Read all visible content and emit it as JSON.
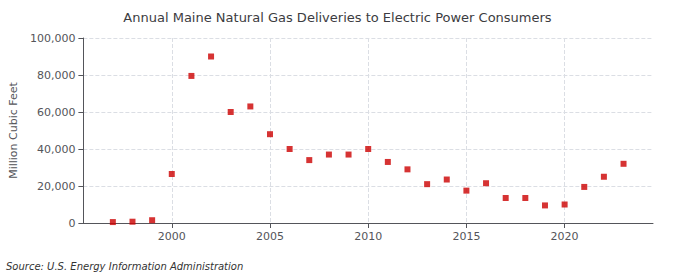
{
  "chart_data": {
    "type": "scatter",
    "title": "Annual Maine Natural Gas Deliveries to Electric Power Consumers",
    "ylabel": "Million Cubic Feet",
    "annotation": "Source: U.S. Energy Information Administration",
    "x": [
      1997,
      1998,
      1999,
      2000,
      2001,
      2002,
      2003,
      2004,
      2005,
      2006,
      2007,
      2008,
      2009,
      2010,
      2011,
      2012,
      2013,
      2014,
      2015,
      2016,
      2017,
      2018,
      2019,
      2020,
      2021,
      2022,
      2023
    ],
    "values": [
      500,
      700,
      1500,
      26500,
      79500,
      90000,
      60000,
      63000,
      48000,
      40000,
      34000,
      37000,
      37000,
      40000,
      33000,
      29000,
      21000,
      23500,
      17500,
      21500,
      13500,
      13500,
      9500,
      10000,
      19500,
      25000,
      32000
    ],
    "color": "#cc0000",
    "marker": "square",
    "xlim": [
      1995.5,
      2024.5
    ],
    "xticks": [
      2000,
      2005,
      2010,
      2015,
      2020
    ],
    "ylim": [
      0,
      100000
    ],
    "yticks": [
      0,
      {
        "value": 20000,
        "label": "20,000"
      },
      {
        "value": 40000,
        "label": "40,000"
      },
      {
        "value": 60000,
        "label": "60,000"
      },
      {
        "value": 80000,
        "label": "80,000"
      },
      {
        "value": 100000,
        "label": "100,000"
      }
    ],
    "grid": true
  }
}
